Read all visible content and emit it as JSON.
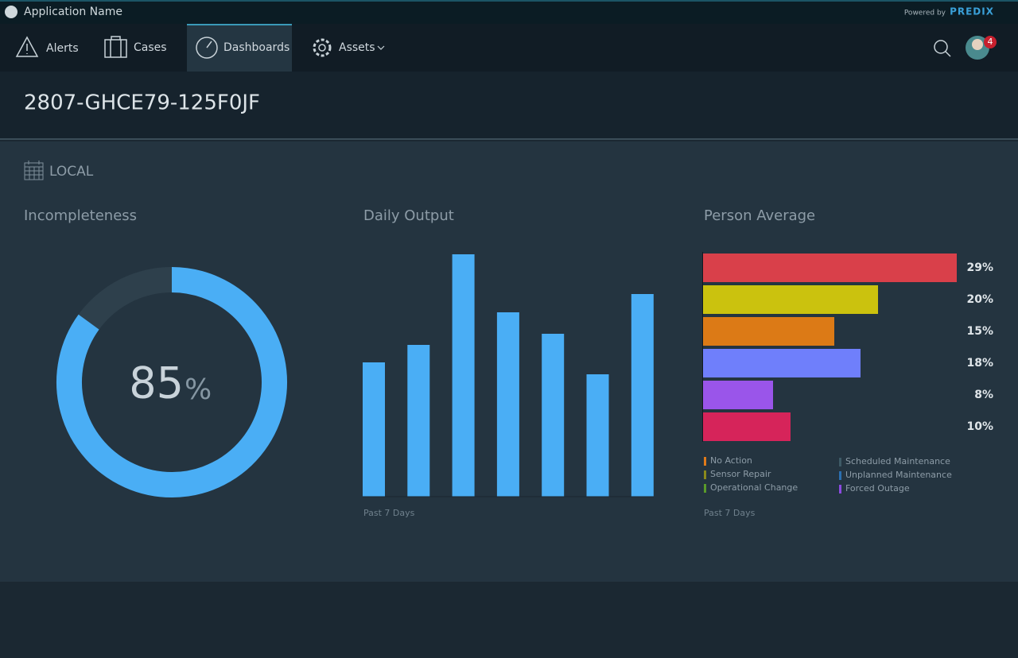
{
  "header": {
    "app_name": "Application Name",
    "powered_by": "Powered by",
    "brand": "PREDIX"
  },
  "nav": {
    "items": [
      "Alerts",
      "Cases",
      "Dashboards",
      "Assets"
    ],
    "active": 2,
    "badge": "4"
  },
  "page_title": "2807-GHCE79-125F0JF",
  "section_label": "LOCAL",
  "chart_data": [
    {
      "type": "donut",
      "title": "Incompleteness",
      "value": 85,
      "unit": "%",
      "color": "#4aaef5",
      "track_color": "#2e404c"
    },
    {
      "type": "bar",
      "title": "Daily Output",
      "values": [
        169,
        191,
        305,
        232,
        205,
        154,
        255
      ],
      "color": "#4aaef5",
      "footnote": "Past 7 Days"
    },
    {
      "type": "barh",
      "title": "Person Average",
      "values": [
        29,
        20,
        15,
        18,
        8,
        10
      ],
      "value_labels": [
        "29%",
        "20%",
        "15%",
        "18%",
        "8%",
        "10%"
      ],
      "colors": [
        "#d9404a",
        "#cbc20e",
        "#dc7a16",
        "#6f7ffb",
        "#9a55ea",
        "#d6245a"
      ],
      "legend": [
        {
          "name": "No Action",
          "color": "#e07a1a"
        },
        {
          "name": "Sensor Repair",
          "color": "#8b8a1c"
        },
        {
          "name": "Operational Change",
          "color": "#5a9a2a"
        },
        {
          "name": "Scheduled Maintenance",
          "color": "#3e5a66"
        },
        {
          "name": "Unplanned Maintenance",
          "color": "#2b6fb0"
        },
        {
          "name": "Forced Outage",
          "color": "#8c4ae0"
        }
      ],
      "footnote": "Past 7 Days"
    }
  ]
}
